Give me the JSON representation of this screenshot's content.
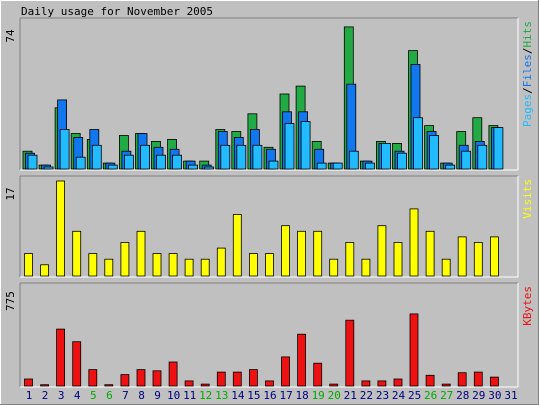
{
  "chart_data": [
    {
      "type": "bar",
      "title": "Daily usage for November 2005",
      "legend_label": [
        "Pages",
        "/",
        "Files",
        "/",
        "Hits"
      ],
      "legend_placement": "right",
      "ytick": "74",
      "ylim": [
        0,
        74
      ],
      "categories": [
        "1",
        "2",
        "3",
        "4",
        "5",
        "6",
        "7",
        "8",
        "9",
        "10",
        "11",
        "12",
        "13",
        "14",
        "15",
        "16",
        "17",
        "18",
        "19",
        "20",
        "21",
        "22",
        "23",
        "24",
        "25",
        "26",
        "27",
        "28",
        "29",
        "30",
        "31"
      ],
      "series": [
        {
          "name": "Hits",
          "color": "#22aa44",
          "values": [
            9,
            2,
            31,
            18,
            15,
            3,
            17,
            18,
            14,
            15,
            4,
            4,
            20,
            19,
            28,
            11,
            38,
            42,
            14,
            3,
            72,
            4,
            14,
            13,
            60,
            22,
            3,
            19,
            26,
            22,
            0
          ]
        },
        {
          "name": "Files",
          "color": "#1177ee",
          "values": [
            8,
            2,
            35,
            16,
            20,
            3,
            9,
            18,
            11,
            10,
            4,
            2,
            19,
            16,
            20,
            10,
            29,
            29,
            10,
            3,
            43,
            4,
            13,
            9,
            53,
            19,
            3,
            12,
            14,
            21,
            0
          ]
        },
        {
          "name": "Pages",
          "color": "#22bbff",
          "values": [
            7,
            1,
            20,
            6,
            12,
            2,
            7,
            12,
            7,
            7,
            2,
            1,
            12,
            12,
            12,
            4,
            23,
            24,
            3,
            3,
            9,
            3,
            13,
            8,
            26,
            17,
            2,
            9,
            12,
            21,
            0
          ]
        }
      ]
    },
    {
      "type": "bar",
      "legend_label": "Visits",
      "ytick": "17",
      "ylim": [
        0,
        17
      ],
      "categories": [
        "1",
        "2",
        "3",
        "4",
        "5",
        "6",
        "7",
        "8",
        "9",
        "10",
        "11",
        "12",
        "13",
        "14",
        "15",
        "16",
        "17",
        "18",
        "19",
        "20",
        "21",
        "22",
        "23",
        "24",
        "25",
        "26",
        "27",
        "28",
        "29",
        "30",
        "31"
      ],
      "series": [
        {
          "name": "Visits",
          "color": "#ffff00",
          "values": [
            4,
            2,
            17,
            8,
            4,
            3,
            6,
            8,
            4,
            4,
            3,
            3,
            5,
            11,
            4,
            4,
            9,
            8,
            8,
            3,
            6,
            3,
            9,
            6,
            12,
            8,
            3,
            7,
            6,
            7,
            0
          ]
        }
      ]
    },
    {
      "type": "bar",
      "legend_label": "KBytes",
      "ytick": "775",
      "ylim": [
        0,
        775
      ],
      "categories": [
        "1",
        "2",
        "3",
        "4",
        "5",
        "6",
        "7",
        "8",
        "9",
        "10",
        "11",
        "12",
        "13",
        "14",
        "15",
        "16",
        "17",
        "18",
        "19",
        "20",
        "21",
        "22",
        "23",
        "24",
        "25",
        "26",
        "27",
        "28",
        "29",
        "30",
        "31"
      ],
      "series": [
        {
          "name": "KBytes",
          "color": "#ee1111",
          "values": [
            55,
            10,
            450,
            350,
            130,
            10,
            90,
            130,
            120,
            190,
            40,
            15,
            110,
            110,
            130,
            40,
            230,
            410,
            180,
            15,
            520,
            40,
            40,
            55,
            570,
            85,
            15,
            105,
            110,
            70,
            0
          ]
        }
      ]
    }
  ],
  "x_axis": {
    "weekend_days": [
      "5",
      "6",
      "12",
      "13",
      "19",
      "20",
      "26",
      "27"
    ],
    "weekday_color": "#000080",
    "weekend_color": "#00aa00"
  }
}
